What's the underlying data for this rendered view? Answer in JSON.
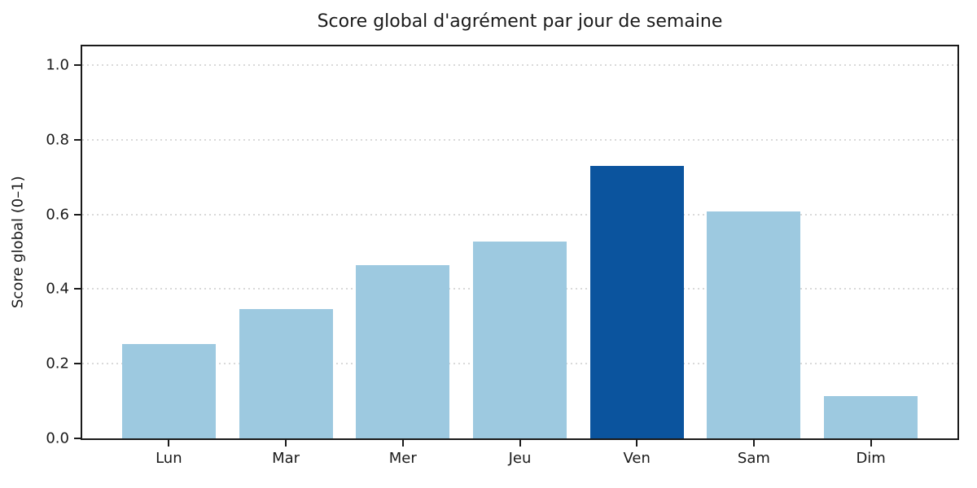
{
  "chart_data": {
    "type": "bar",
    "title": "Score global d'agrément par jour de semaine",
    "ylabel": "Score global (0–1)",
    "xlabel": "",
    "categories": [
      "Lun",
      "Mar",
      "Mer",
      "Jeu",
      "Ven",
      "Sam",
      "Dim"
    ],
    "values": [
      0.253,
      0.346,
      0.465,
      0.527,
      0.729,
      0.608,
      0.114
    ],
    "highlight_index": 4,
    "colors": {
      "bar": "#9dc9e0",
      "highlight": "#0b549e",
      "grid": "#d9d9d9",
      "axis": "#1a1a1a"
    },
    "ylim": [
      0,
      1.05
    ],
    "yticks": [
      0.0,
      0.2,
      0.4,
      0.6,
      0.8,
      1.0
    ],
    "ytick_format_decimals": 1,
    "grid": "horizontal dotted",
    "legend": "none",
    "x_axis_units": {
      "min": -0.74,
      "max": 6.74,
      "bar_width": 0.8
    }
  }
}
